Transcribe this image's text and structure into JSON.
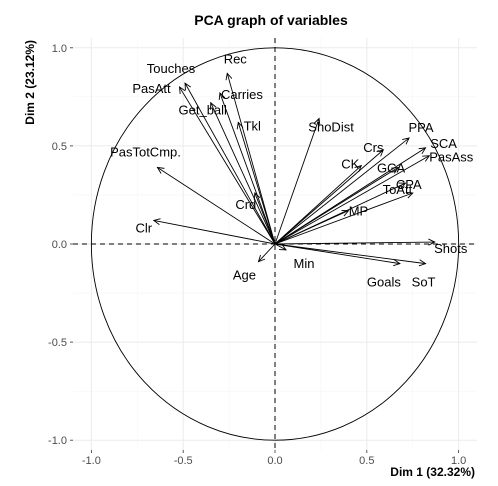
{
  "chart_data": {
    "type": "scatter",
    "title": "PCA graph of variables",
    "xlabel": "Dim 1 (32.32%)",
    "ylabel": "Dim 2 (23.12%)",
    "xlim": [
      -1.1,
      1.1
    ],
    "ylim": [
      -1.05,
      1.05
    ],
    "x_ticks": [
      -1.0,
      -0.5,
      0.0,
      0.5,
      1.0
    ],
    "x_tick_labels": [
      "-1.0",
      "-0.5",
      "0.0",
      "0.5",
      "1.0"
    ],
    "y_ticks": [
      -1.0,
      -0.5,
      0.0,
      0.5,
      1.0
    ],
    "y_tick_labels": [
      "-1.0",
      "-0.5",
      "0.0",
      "0.5",
      "1.0"
    ],
    "grid": true,
    "unit_circle": true,
    "colors": {
      "arrow": "#000000",
      "grid": "#ebebeb",
      "circle": "#000000"
    },
    "variables": [
      {
        "name": "Touches",
        "x": -0.49,
        "y": 0.82
      },
      {
        "name": "Rec",
        "x": -0.26,
        "y": 0.87
      },
      {
        "name": "PasAtt",
        "x": -0.52,
        "y": 0.8
      },
      {
        "name": "Carries",
        "x": -0.3,
        "y": 0.77
      },
      {
        "name": "Get_ball",
        "x": -0.35,
        "y": 0.72
      },
      {
        "name": "Tkl",
        "x": -0.2,
        "y": 0.62
      },
      {
        "name": "ShoDist",
        "x": 0.24,
        "y": 0.64
      },
      {
        "name": "PasTotCmp.",
        "x": -0.64,
        "y": 0.39
      },
      {
        "name": "Crd",
        "x": -0.11,
        "y": 0.26
      },
      {
        "name": "Clr",
        "x": -0.66,
        "y": 0.12
      },
      {
        "name": "Age",
        "x": -0.09,
        "y": -0.09
      },
      {
        "name": "Min",
        "x": 0.06,
        "y": -0.03
      },
      {
        "name": "PPA",
        "x": 0.73,
        "y": 0.54
      },
      {
        "name": "Crs",
        "x": 0.59,
        "y": 0.48
      },
      {
        "name": "SCA",
        "x": 0.82,
        "y": 0.49
      },
      {
        "name": "PasAss",
        "x": 0.84,
        "y": 0.45
      },
      {
        "name": "GCA",
        "x": 0.67,
        "y": 0.39
      },
      {
        "name": "CK",
        "x": 0.47,
        "y": 0.4
      },
      {
        "name": "ToAtt",
        "x": 0.71,
        "y": 0.31
      },
      {
        "name": "MP",
        "x": 0.4,
        "y": 0.17
      },
      {
        "name": "CPA",
        "x": 0.75,
        "y": 0.26
      },
      {
        "name": "Shots",
        "x": 0.87,
        "y": 0.01
      },
      {
        "name": "Goals",
        "x": 0.68,
        "y": -0.1
      },
      {
        "name": "SoT",
        "x": 0.82,
        "y": -0.1
      }
    ]
  }
}
